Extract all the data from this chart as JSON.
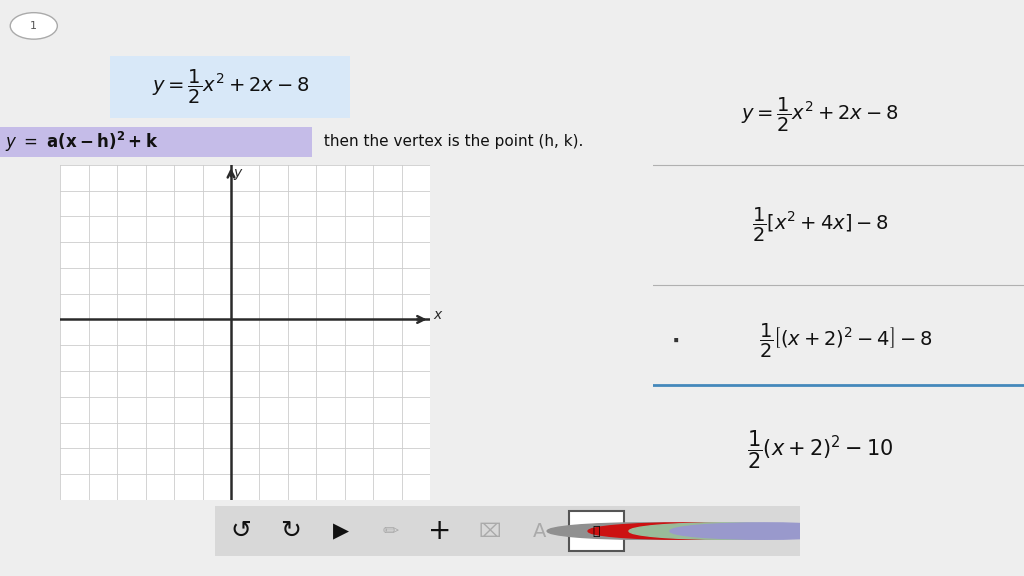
{
  "bg_color": "#eeeeee",
  "page_bg": "#ffffff",
  "page_number": "1",
  "title_bg": "#d8e8f8",
  "vertex_form_bg": "#c5bce8",
  "divider_color": "#b0b0b0",
  "blue_divider_color": "#4488bb",
  "toolbar_bg": "#d8d8d8",
  "grid_color": "#cccccc",
  "axis_color": "#2a2a2a",
  "axis_label_x": "$x$",
  "axis_label_y": "$y$",
  "graph_xlim": [
    -6,
    7
  ],
  "graph_ylim": [
    -7,
    6
  ],
  "circle_colors": [
    "#909090",
    "#cc1111",
    "#99bb99",
    "#9999cc"
  ]
}
